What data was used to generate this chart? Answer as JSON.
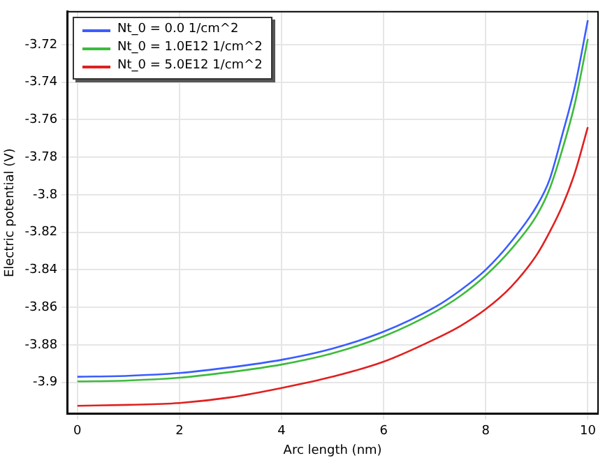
{
  "chart_data": {
    "type": "line",
    "xlabel": "Arc length (nm)",
    "ylabel": "Electric potential (V)",
    "x": [
      0,
      1,
      2,
      3,
      4,
      5,
      6,
      7,
      7.5,
      8,
      8.5,
      9,
      9.25,
      9.5,
      9.75,
      10
    ],
    "series": [
      {
        "name": "Nt_0 = 0.0 1/cm^2",
        "color": "#3a5dff",
        "values": [
          -3.897,
          -3.8965,
          -3.895,
          -3.892,
          -3.888,
          -3.882,
          -3.873,
          -3.86,
          -3.851,
          -3.84,
          -3.825,
          -3.806,
          -3.792,
          -3.768,
          -3.742,
          -3.707
        ]
      },
      {
        "name": "Nt_0 = 1.0E12 1/cm^2",
        "color": "#3dbb3d",
        "values": [
          -3.8995,
          -3.899,
          -3.8975,
          -3.8945,
          -3.8905,
          -3.8845,
          -3.8755,
          -3.8625,
          -3.854,
          -3.843,
          -3.829,
          -3.811,
          -3.797,
          -3.776,
          -3.751,
          -3.717
        ]
      },
      {
        "name": "Nt_0 = 5.0E12 1/cm^2",
        "color": "#e02020",
        "values": [
          -3.9125,
          -3.912,
          -3.911,
          -3.908,
          -3.903,
          -3.897,
          -3.889,
          -3.877,
          -3.87,
          -3.861,
          -3.849,
          -3.832,
          -3.82,
          -3.806,
          -3.788,
          -3.764
        ]
      }
    ],
    "xlim": [
      -0.2,
      10.2
    ],
    "xticks": [
      0,
      2,
      4,
      6,
      8,
      10
    ],
    "ylim": [
      -3.9168,
      -3.7025
    ],
    "yticks": [
      -3.9,
      -3.88,
      -3.86,
      -3.84,
      -3.82,
      -3.8,
      -3.78,
      -3.76,
      -3.74,
      -3.72
    ],
    "grid": true,
    "legend": "top left",
    "marker": "none",
    "line_style": "solid"
  }
}
